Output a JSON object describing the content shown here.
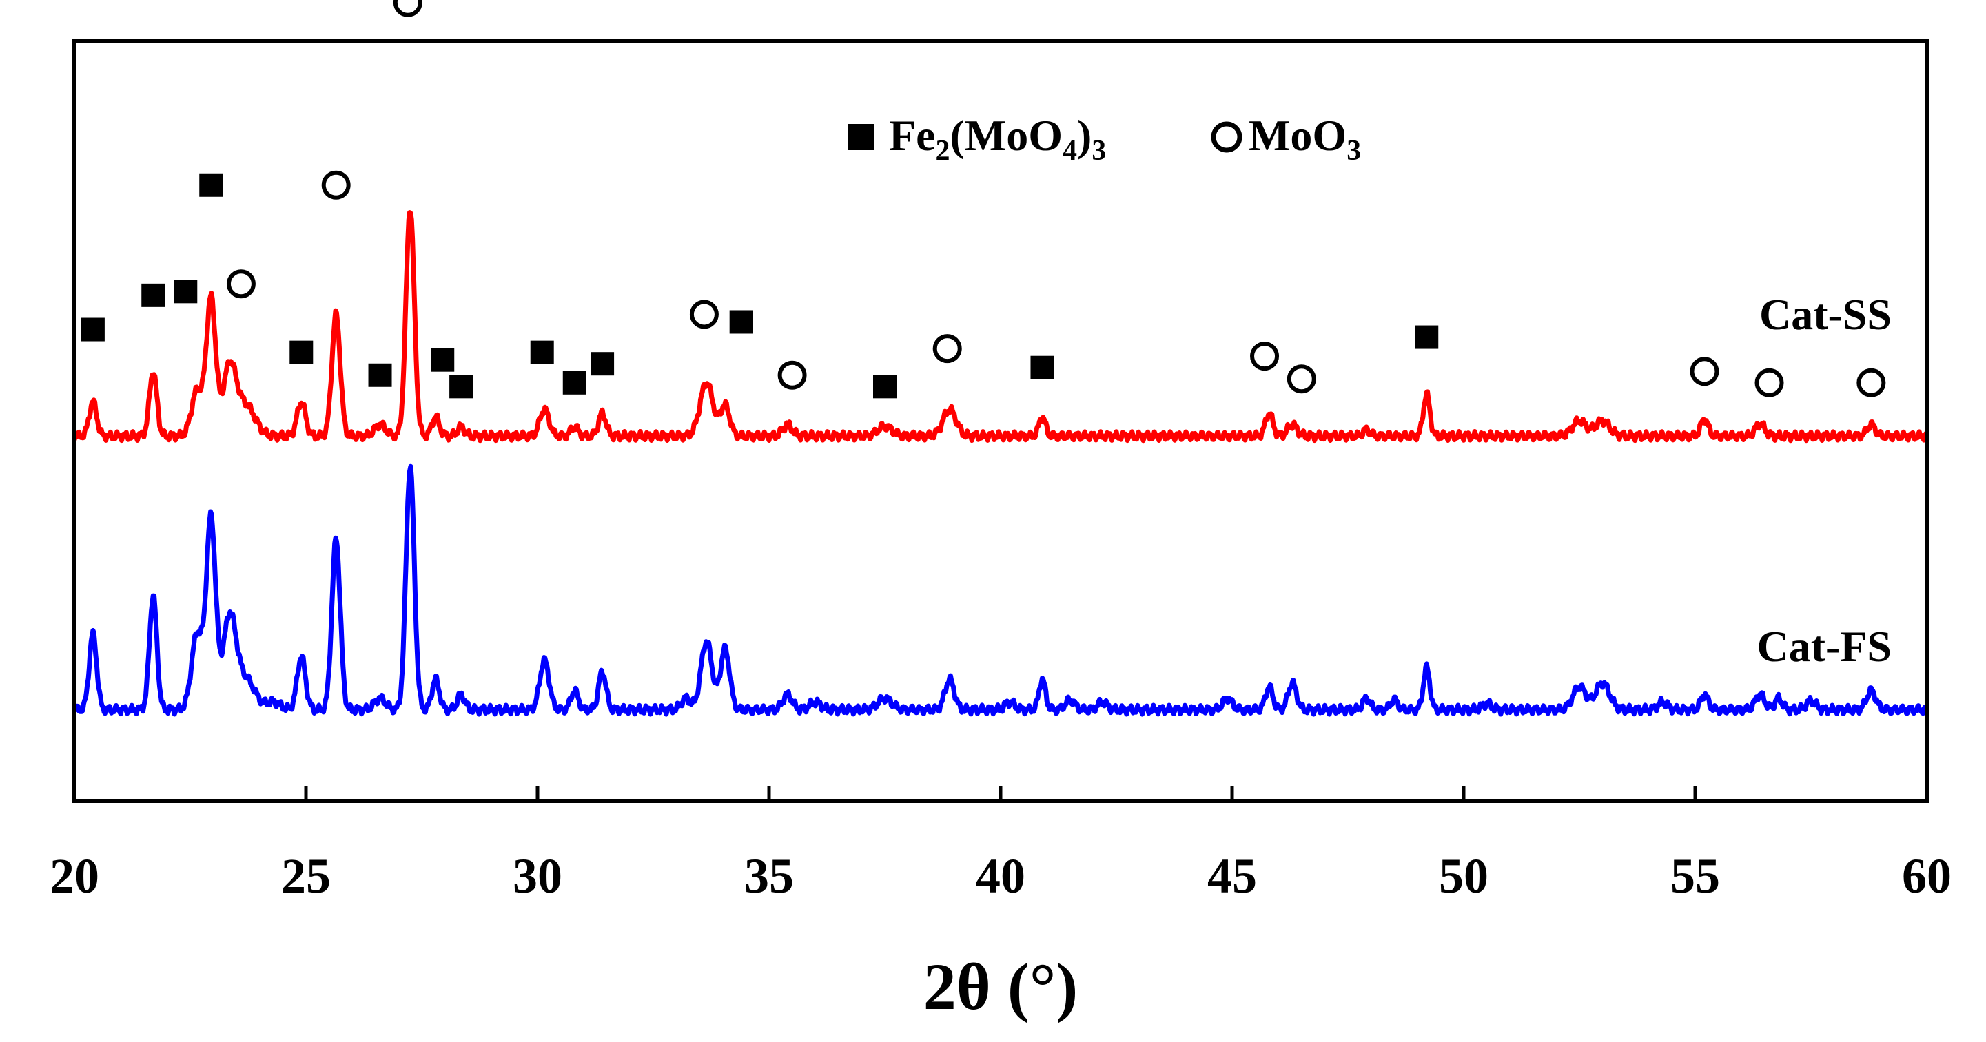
{
  "chart_data": {
    "type": "line",
    "title": "",
    "xlabel": "2θ (°)",
    "ylabel": "",
    "xlim": [
      20,
      60
    ],
    "ylim": [
      0,
      100
    ],
    "x_ticks": [
      20,
      25,
      30,
      35,
      40,
      45,
      50,
      55,
      60
    ],
    "x_tick_labels": [
      "20",
      "25",
      "30",
      "35",
      "40",
      "45",
      "50",
      "55",
      "60"
    ],
    "y_ticks_shown": false,
    "grid": false,
    "legend": {
      "placement": "top-center",
      "entries": [
        {
          "marker": "filled-square",
          "label": "Fe2(MoO4)3",
          "formula_parts": [
            [
              "Fe",
              ""
            ],
            [
              "2",
              "sub"
            ],
            [
              "(MoO",
              ""
            ],
            [
              "4",
              "sub"
            ],
            [
              ")",
              ""
            ],
            [
              "3",
              "sub"
            ]
          ]
        },
        {
          "marker": "open-circle",
          "label": "MoO3",
          "formula_parts": [
            [
              "MoO",
              ""
            ],
            [
              "3",
              "sub"
            ]
          ]
        }
      ]
    },
    "series": [
      {
        "name": "Cat-SS",
        "color": "#ff0000",
        "baseline": 48,
        "peaks": [
          [
            20.4,
            4.5,
            0.08
          ],
          [
            21.7,
            8.5,
            0.08
          ],
          [
            22.65,
            6,
            0.12
          ],
          [
            22.95,
            18,
            0.1
          ],
          [
            23.35,
            9,
            0.14
          ],
          [
            23.7,
            4,
            0.2
          ],
          [
            24.9,
            4.5,
            0.09
          ],
          [
            25.65,
            16,
            0.09
          ],
          [
            26.6,
            1.5,
            0.12
          ],
          [
            27.25,
            30,
            0.09
          ],
          [
            27.8,
            2.5,
            0.08
          ],
          [
            28.35,
            1.2,
            0.08
          ],
          [
            30.15,
            3.5,
            0.1
          ],
          [
            30.8,
            1.2,
            0.08
          ],
          [
            31.4,
            3,
            0.08
          ],
          [
            33.65,
            7,
            0.14
          ],
          [
            34.05,
            4,
            0.1
          ],
          [
            35.4,
            1.5,
            0.1
          ],
          [
            37.5,
            1.3,
            0.15
          ],
          [
            38.9,
            3.5,
            0.14
          ],
          [
            40.9,
            2.5,
            0.07
          ],
          [
            45.8,
            3,
            0.08
          ],
          [
            46.3,
            1.5,
            0.1
          ],
          [
            47.9,
            0.8,
            0.08
          ],
          [
            49.2,
            5.5,
            0.07
          ],
          [
            52.5,
            2,
            0.15
          ],
          [
            53.0,
            2,
            0.15
          ],
          [
            55.2,
            2.2,
            0.08
          ],
          [
            56.4,
            1.6,
            0.1
          ],
          [
            58.8,
            1.5,
            0.09
          ]
        ],
        "markers": [
          {
            "x": 20.4,
            "kind": "square",
            "height": 14
          },
          {
            "x": 21.7,
            "kind": "square",
            "height": 18.5
          },
          {
            "x": 22.4,
            "kind": "square",
            "height": 19
          },
          {
            "x": 22.95,
            "kind": "square",
            "height": 33
          },
          {
            "x": 23.6,
            "kind": "circle",
            "height": 20
          },
          {
            "x": 24.9,
            "kind": "square",
            "height": 11
          },
          {
            "x": 25.65,
            "kind": "circle",
            "height": 33
          },
          {
            "x": 26.6,
            "kind": "square",
            "height": 8
          },
          {
            "x": 27.2,
            "kind": "circle",
            "height": 57
          },
          {
            "x": 27.95,
            "kind": "square",
            "height": 10
          },
          {
            "x": 28.35,
            "kind": "square",
            "height": 6.5
          },
          {
            "x": 30.1,
            "kind": "square",
            "height": 11
          },
          {
            "x": 30.8,
            "kind": "square",
            "height": 7
          },
          {
            "x": 31.4,
            "kind": "square",
            "height": 9.5
          },
          {
            "x": 33.6,
            "kind": "circle",
            "height": 16
          },
          {
            "x": 34.4,
            "kind": "square",
            "height": 15
          },
          {
            "x": 35.5,
            "kind": "circle",
            "height": 8
          },
          {
            "x": 37.5,
            "kind": "square",
            "height": 6.5
          },
          {
            "x": 38.85,
            "kind": "circle",
            "height": 11.5
          },
          {
            "x": 40.9,
            "kind": "square",
            "height": 9
          },
          {
            "x": 45.7,
            "kind": "circle",
            "height": 10.5
          },
          {
            "x": 46.5,
            "kind": "circle",
            "height": 7.5
          },
          {
            "x": 49.2,
            "kind": "square",
            "height": 13
          },
          {
            "x": 55.2,
            "kind": "circle",
            "height": 8.5
          },
          {
            "x": 56.6,
            "kind": "circle",
            "height": 7
          },
          {
            "x": 58.8,
            "kind": "circle",
            "height": 7
          }
        ],
        "label": "Cat-SS"
      },
      {
        "name": "Cat-FS",
        "color": "#0000ff",
        "baseline": 12,
        "peaks": [
          [
            20.4,
            10,
            0.08
          ],
          [
            21.7,
            15,
            0.08
          ],
          [
            22.65,
            10,
            0.12
          ],
          [
            22.95,
            25,
            0.1
          ],
          [
            23.35,
            12,
            0.14
          ],
          [
            23.7,
            4,
            0.2
          ],
          [
            24.3,
            1,
            0.15
          ],
          [
            24.9,
            7,
            0.09
          ],
          [
            25.65,
            22.5,
            0.09
          ],
          [
            26.6,
            1.5,
            0.12
          ],
          [
            27.25,
            32,
            0.09
          ],
          [
            27.8,
            4,
            0.08
          ],
          [
            28.35,
            2,
            0.08
          ],
          [
            30.15,
            6.5,
            0.1
          ],
          [
            30.8,
            2.5,
            0.08
          ],
          [
            31.4,
            5,
            0.08
          ],
          [
            33.2,
            1.5,
            0.1
          ],
          [
            33.65,
            9,
            0.12
          ],
          [
            34.05,
            8,
            0.1
          ],
          [
            35.4,
            2,
            0.1
          ],
          [
            36.0,
            1,
            0.12
          ],
          [
            37.5,
            1.5,
            0.15
          ],
          [
            38.9,
            4,
            0.1
          ],
          [
            40.2,
            1,
            0.1
          ],
          [
            40.9,
            4,
            0.07
          ],
          [
            41.5,
            1.3,
            0.1
          ],
          [
            42.2,
            1,
            0.1
          ],
          [
            44.9,
            1.5,
            0.1
          ],
          [
            45.8,
            3,
            0.08
          ],
          [
            46.3,
            3.5,
            0.09
          ],
          [
            47.9,
            1.5,
            0.08
          ],
          [
            48.5,
            1.3,
            0.08
          ],
          [
            49.2,
            5.5,
            0.07
          ],
          [
            50.5,
            0.8,
            0.1
          ],
          [
            52.5,
            3,
            0.14
          ],
          [
            53.0,
            3.5,
            0.15
          ],
          [
            54.3,
            1,
            0.1
          ],
          [
            55.2,
            2,
            0.08
          ],
          [
            56.4,
            2,
            0.1
          ],
          [
            56.8,
            1.5,
            0.08
          ],
          [
            57.5,
            1.2,
            0.1
          ],
          [
            58.8,
            2.5,
            0.1
          ]
        ],
        "markers": [],
        "label": "Cat-FS"
      }
    ]
  }
}
